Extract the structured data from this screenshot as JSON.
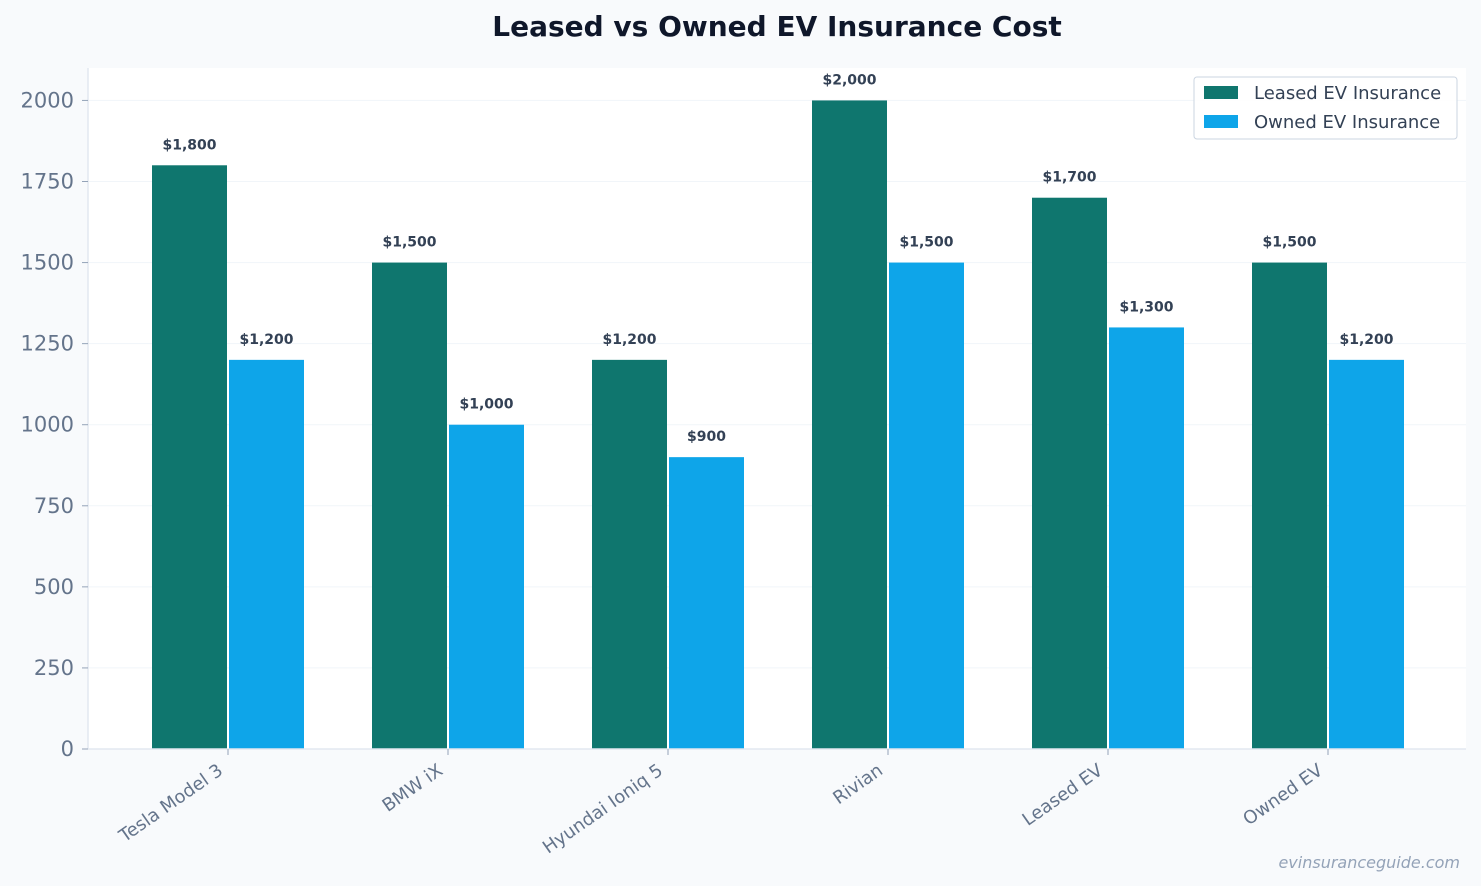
{
  "chart_data": {
    "type": "bar",
    "title": "Leased vs Owned EV Insurance Cost",
    "xlabel": "",
    "ylabel": "",
    "categories": [
      "Tesla Model 3",
      "BMW iX",
      "Hyundai Ioniq 5",
      "Rivian",
      "Leased EV",
      "Owned EV"
    ],
    "series": [
      {
        "name": "Leased EV Insurance",
        "color": "#0f766e",
        "values": [
          1800,
          1500,
          1200,
          2000,
          1700,
          1500
        ],
        "labels": [
          "$1,800",
          "$1,500",
          "$1,200",
          "$2,000",
          "$1,700",
          "$1,500"
        ]
      },
      {
        "name": "Owned EV Insurance",
        "color": "#0ea5e9",
        "values": [
          1200,
          1000,
          900,
          1500,
          1300,
          1200
        ],
        "labels": [
          "$1,200",
          "$1,000",
          "$900",
          "$1,500",
          "$1,300",
          "$1,200"
        ]
      }
    ],
    "yticks": [
      "0",
      "250",
      "500",
      "750",
      "1000",
      "1250",
      "1500",
      "1750",
      "2000"
    ],
    "ylim": [
      0,
      2100
    ],
    "grid": true,
    "legend_position": "top-right"
  },
  "watermark": "evinsuranceguide.com"
}
